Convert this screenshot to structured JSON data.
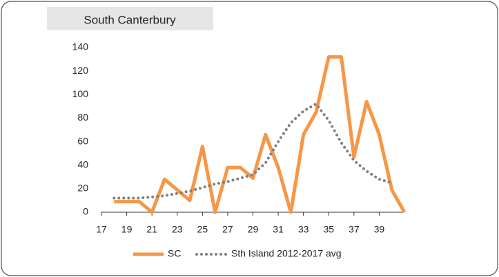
{
  "chart_data": {
    "type": "line",
    "title": "South Canterbury",
    "x": [
      18,
      19,
      20,
      21,
      22,
      23,
      24,
      25,
      26,
      27,
      28,
      29,
      30,
      31,
      32,
      33,
      34,
      35,
      36,
      37,
      38,
      39,
      40,
      41
    ],
    "series": [
      {
        "name": "SC",
        "color": "#f79646",
        "style": "solid",
        "values": [
          9,
          9,
          9,
          0,
          28,
          19,
          10,
          56,
          0,
          38,
          38,
          29,
          66,
          38,
          0,
          66,
          85,
          132,
          132,
          47,
          94,
          66,
          19,
          0
        ]
      },
      {
        "name": "Sth Island 2012-2017 avg",
        "color": "#7f7f7f",
        "style": "dotted",
        "values": [
          12,
          12,
          12,
          13,
          14,
          16,
          18,
          21,
          24,
          26,
          29,
          32,
          42,
          60,
          76,
          86,
          92,
          78,
          59,
          44,
          35,
          28,
          25,
          null
        ]
      }
    ],
    "xlim": [
      17,
      41
    ],
    "xticks": [
      17,
      19,
      21,
      23,
      25,
      27,
      29,
      31,
      33,
      35,
      37,
      39
    ],
    "ylim": [
      0,
      140
    ],
    "yticks": [
      0,
      20,
      40,
      60,
      80,
      100,
      120,
      140
    ],
    "legend": "bottom"
  }
}
